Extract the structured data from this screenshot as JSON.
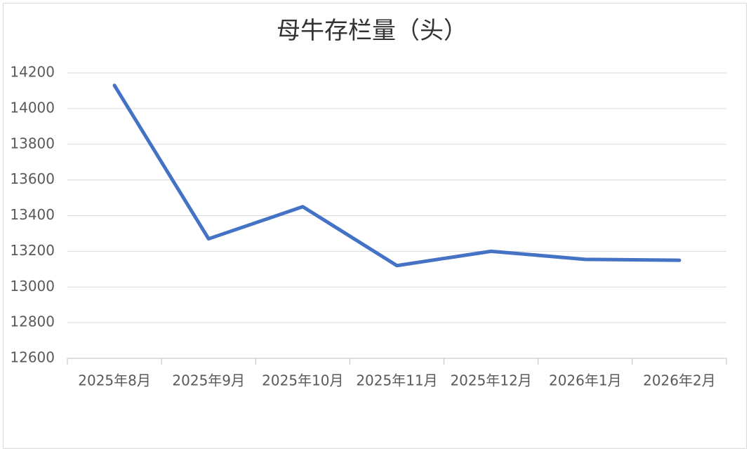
{
  "chart_data": {
    "type": "line",
    "title": "母牛存栏量（头）",
    "categories": [
      "2025年8月",
      "2025年9月",
      "2025年10月",
      "2025年11月",
      "2025年12月",
      "2026年1月",
      "2026年2月"
    ],
    "series": [
      {
        "name": "母牛存栏量",
        "color": "#4472c4",
        "values": [
          14130,
          13270,
          13450,
          13120,
          13200,
          13155,
          13150
        ]
      }
    ],
    "ylim": [
      12600,
      14200
    ],
    "yticks": [
      12600,
      12800,
      13000,
      13200,
      13400,
      13600,
      13800,
      14000,
      14200
    ],
    "grid": true
  }
}
